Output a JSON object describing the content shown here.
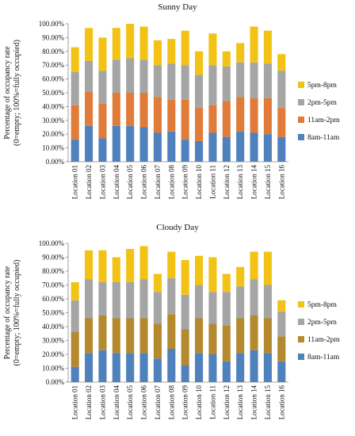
{
  "chart_data": [
    {
      "type": "bar",
      "stacked": true,
      "title": "Sunny Day",
      "ylabel": "Percentage of occupancy rate (0=empty; 100%=fully occupied)",
      "xlabel": "",
      "ylim": [
        0,
        100
      ],
      "ytick_step": 10,
      "ytick_labels": [
        "0.00%",
        "10.00%",
        "20.00%",
        "30.00%",
        "40.00%",
        "50.00%",
        "60.00%",
        "70.00%",
        "80.00%",
        "90.00%",
        "100.00%"
      ],
      "grid": false,
      "legend_position": "right",
      "categories": [
        "Location 01",
        "Location 02",
        "Location 03",
        "Location 04",
        "Location 05",
        "Location 06",
        "Location 07",
        "Location 08",
        "Location 09",
        "Location 10",
        "Location 11",
        "Location 12",
        "Location 13",
        "Location 14",
        "Location 15",
        "Location 16"
      ],
      "series": [
        {
          "name": "8am-11am",
          "color": "#4f81bd",
          "values": [
            16,
            26,
            17,
            26,
            26,
            25,
            21,
            22,
            16,
            15,
            21,
            18,
            22,
            21,
            20,
            18
          ]
        },
        {
          "name": "11am-2pm",
          "color": "#e07b39",
          "values": [
            25,
            25,
            25,
            24,
            24,
            25,
            26,
            23,
            29,
            24,
            20,
            26,
            25,
            25,
            26,
            21
          ]
        },
        {
          "name": "2pm-5pm",
          "color": "#a5a5a5",
          "values": [
            24,
            22,
            24,
            24,
            25,
            24,
            23,
            26,
            25,
            24,
            29,
            25,
            25,
            26,
            25,
            27
          ]
        },
        {
          "name": "5pm-8pm",
          "color": "#f2c314",
          "values": [
            18,
            24,
            24,
            23,
            25,
            24,
            18,
            18,
            25,
            17,
            23,
            11,
            14,
            26,
            24,
            12
          ]
        }
      ]
    },
    {
      "type": "bar",
      "stacked": true,
      "title": "Cloudy Day",
      "ylabel": "Percentage of occupancy rate (0=empty; 100%=fully occupied)",
      "xlabel": "",
      "ylim": [
        0,
        100
      ],
      "ytick_step": 10,
      "ytick_labels": [
        "0.00%",
        "10.00%",
        "20.00%",
        "30.00%",
        "40.00%",
        "50.00%",
        "60.00%",
        "70.00%",
        "80.00%",
        "90.00%",
        "100.00%"
      ],
      "grid": false,
      "legend_position": "right",
      "categories": [
        "Location 01",
        "Location 02",
        "Location 03",
        "Location 04",
        "Location 05",
        "Location 06",
        "Location 07",
        "Location 08",
        "Location 09",
        "Location 10",
        "Location 11",
        "Location 12",
        "Location 13",
        "Location 14",
        "Location 15",
        "Location 16"
      ],
      "series": [
        {
          "name": "8am-11am",
          "color": "#4f81bd",
          "values": [
            11,
            21,
            23,
            21,
            21,
            21,
            17,
            24,
            12,
            21,
            20,
            15,
            21,
            23,
            21,
            15
          ]
        },
        {
          "name": "11am-2pm",
          "color": "#b5892e",
          "values": [
            25,
            25,
            25,
            25,
            25,
            25,
            25,
            25,
            26,
            25,
            22,
            26,
            25,
            25,
            25,
            18
          ]
        },
        {
          "name": "2pm-5pm",
          "color": "#a5a5a5",
          "values": [
            23,
            28,
            24,
            26,
            26,
            28,
            23,
            26,
            25,
            24,
            23,
            24,
            23,
            26,
            24,
            18
          ]
        },
        {
          "name": "5pm-8pm",
          "color": "#f2c314",
          "values": [
            13,
            21,
            23,
            18,
            24,
            24,
            13,
            19,
            25,
            21,
            25,
            13,
            14,
            20,
            24,
            8
          ]
        }
      ]
    }
  ]
}
